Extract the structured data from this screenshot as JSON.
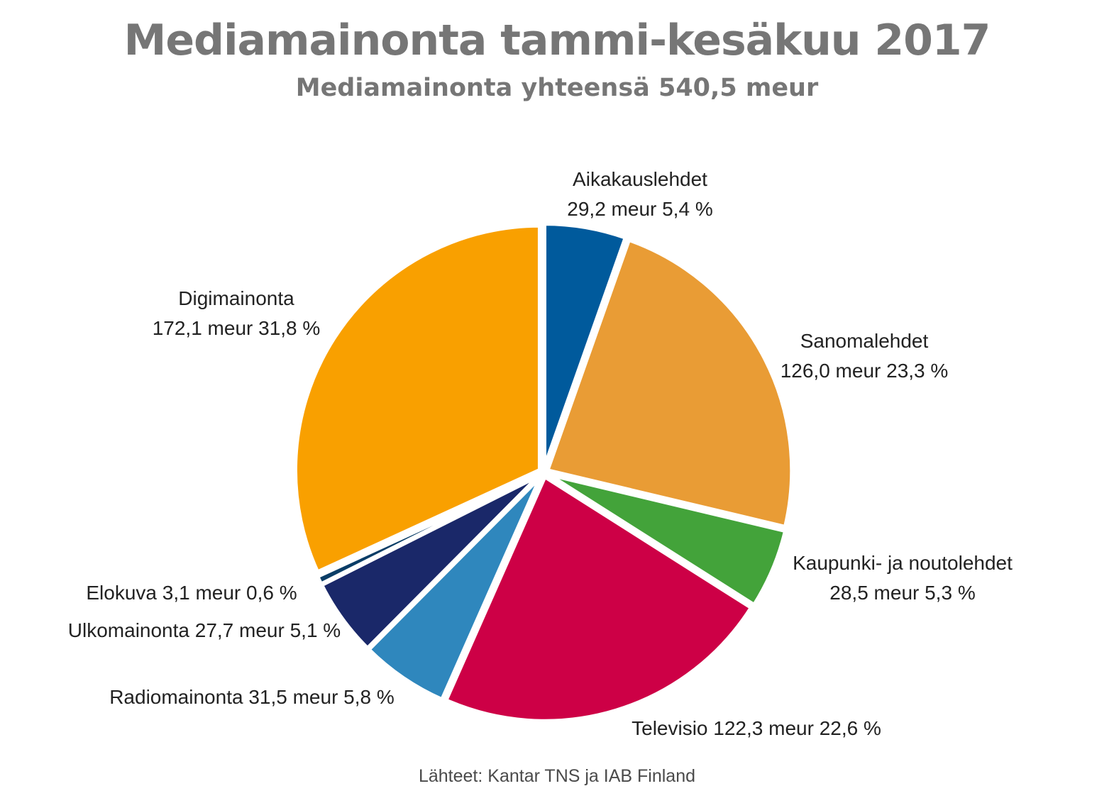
{
  "chart_data": {
    "type": "pie",
    "title": "Mediamainonta tammi-kesäkuu 2017",
    "subtitle": "Mediamainonta yhteensä 540,5 meur",
    "source": "Lähteet: Kantar TNS ja IAB Finland",
    "slices": [
      {
        "name": "Aikakauslehdet",
        "value": 29.2,
        "percent": 5.4,
        "color": "#005a9c",
        "label_line1": "Aikakauslehdet",
        "label_line2": "29,2 meur 5,4 %"
      },
      {
        "name": "Sanomalehdet",
        "value": 126.0,
        "percent": 23.3,
        "color": "#e99c35",
        "label_line1": "Sanomalehdet",
        "label_line2": "126,0 meur 23,3 %"
      },
      {
        "name": "Kaupunki- ja noutolehdet",
        "value": 28.5,
        "percent": 5.3,
        "color": "#43a33a",
        "label_line1": "Kaupunki- ja noutolehdet",
        "label_line2": "28,5 meur 5,3 %"
      },
      {
        "name": "Televisio",
        "value": 122.3,
        "percent": 22.6,
        "color": "#cd0046",
        "label_line1": "Televisio 122,3 meur 22,6 %",
        "label_line2": ""
      },
      {
        "name": "Radiomainonta",
        "value": 31.5,
        "percent": 5.8,
        "color": "#2f87bd",
        "label_line1": "Radiomainonta 31,5 meur 5,8 %",
        "label_line2": ""
      },
      {
        "name": "Ulkomainonta",
        "value": 27.7,
        "percent": 5.1,
        "color": "#1a2869",
        "label_line1": "Ulkomainonta 27,7 meur 5,1 %",
        "label_line2": ""
      },
      {
        "name": "Elokuva",
        "value": 3.1,
        "percent": 0.6,
        "color": "#0a3d66",
        "label_line1": "Elokuva 3,1 meur 0,6 %",
        "label_line2": ""
      },
      {
        "name": "Digimainonta",
        "value": 172.1,
        "percent": 31.8,
        "color": "#f9a000",
        "label_line1": "Digimainonta",
        "label_line2": "172,1 meur 31,8 %"
      }
    ]
  }
}
